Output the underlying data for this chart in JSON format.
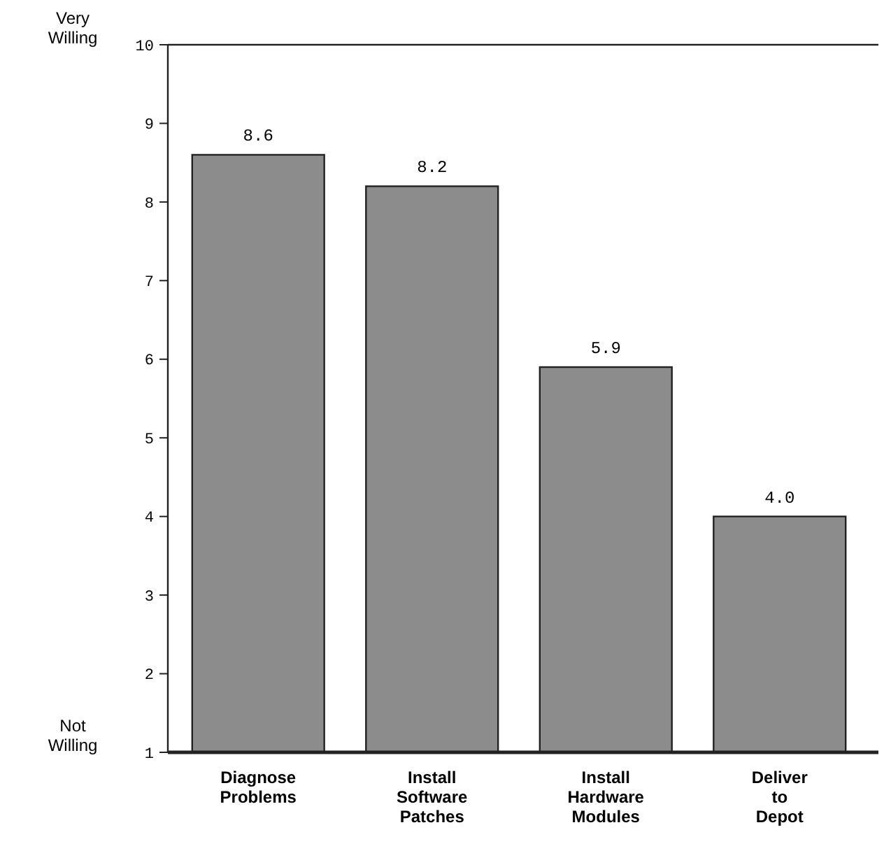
{
  "chart_data": {
    "type": "bar",
    "categories": [
      "Diagnose\nProblems",
      "Install\nSoftware\nPatches",
      "Install\nHardware\nModules",
      "Deliver\nto\nDepot"
    ],
    "values": [
      8.6,
      8.2,
      5.9,
      4.0
    ],
    "color": "#8c8c8c",
    "ylim": [
      1,
      10
    ],
    "yticks": [
      1,
      2,
      3,
      4,
      5,
      6,
      7,
      8,
      9,
      10
    ],
    "value_labels": [
      "8.6",
      "8.2",
      "5.9",
      "4.0"
    ],
    "grid": false,
    "annotations": [
      "Very\nWilling",
      "Not\nWilling"
    ]
  }
}
